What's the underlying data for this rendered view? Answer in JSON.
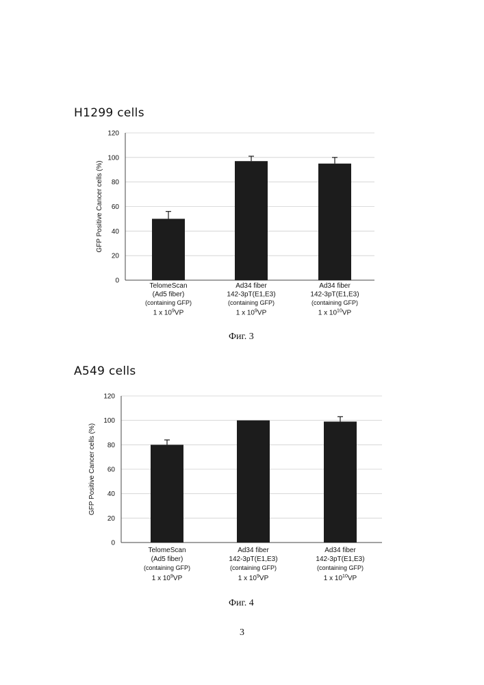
{
  "charts": [
    {
      "title": "H1299 cells",
      "caption": "Фиг. 3"
    },
    {
      "title": "A549 cells",
      "caption": "Фиг. 4"
    }
  ],
  "page_number": "3",
  "colors": {
    "bar": "#1c1c1c",
    "error_bar": "#1a1a1a",
    "grid": "#cfcfcf",
    "axis": "#444444"
  },
  "chart_data": [
    {
      "type": "bar",
      "title": "H1299 cells",
      "ylabel": "GFP Positive Cancer cells (%)",
      "ylim": [
        0,
        120
      ],
      "yticks": [
        "0",
        "20",
        "40",
        "60",
        "80",
        "100",
        "120"
      ],
      "grid": true,
      "categories": [
        {
          "lines": [
            "TelomeScan",
            "(Ad5 fiber)",
            "(containing GFP)"
          ],
          "dose": {
            "base": "1 x 10",
            "exp": "9",
            "unit": "VP"
          }
        },
        {
          "lines": [
            "Ad34 fiber",
            "142-3pT(E1,E3)",
            "(containing GFP)"
          ],
          "dose": {
            "base": "1 x 10",
            "exp": "9",
            "unit": "VP"
          }
        },
        {
          "lines": [
            "Ad34 fiber",
            "142-3pT(E1,E3)",
            "(containing GFP)"
          ],
          "dose": {
            "base": "1 x 10",
            "exp": "10",
            "unit": "VP"
          }
        }
      ],
      "values": [
        50,
        97,
        95
      ],
      "errors": [
        6,
        4,
        5
      ]
    },
    {
      "type": "bar",
      "title": "A549 cells",
      "ylabel": "GFP Positive Cancer cells (%)",
      "ylim": [
        0,
        120
      ],
      "yticks": [
        "0",
        "20",
        "40",
        "60",
        "80",
        "100",
        "120"
      ],
      "grid": true,
      "categories": [
        {
          "lines": [
            "TelomeScan",
            "(Ad5 fiber)",
            "(containing GFP)"
          ],
          "dose": {
            "base": "1 x 10",
            "exp": "9",
            "unit": "VP"
          }
        },
        {
          "lines": [
            "Ad34 fiber",
            "142-3pT(E1,E3)",
            "(containing GFP)"
          ],
          "dose": {
            "base": "1 x 10",
            "exp": "9",
            "unit": "VP"
          }
        },
        {
          "lines": [
            "Ad34 fiber",
            "142-3pT(E1,E3)",
            "(containing GFP)"
          ],
          "dose": {
            "base": "1 x 10",
            "exp": "10",
            "unit": "VP"
          }
        }
      ],
      "values": [
        80,
        100,
        99
      ],
      "errors": [
        4,
        0,
        4
      ]
    }
  ]
}
